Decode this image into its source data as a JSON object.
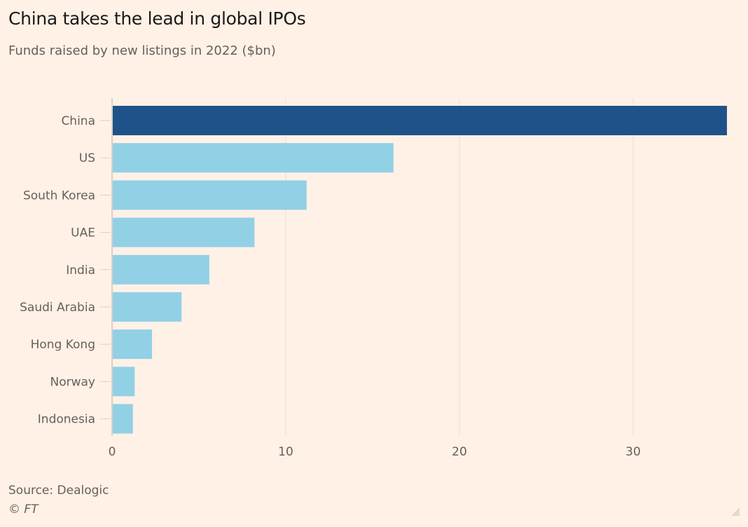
{
  "header": {
    "title": "China takes the lead in global IPOs",
    "subtitle": "Funds raised by new listings in 2022 ($bn)"
  },
  "footer": {
    "source": "Source: Dealogic",
    "copyright": "© FT"
  },
  "colors": {
    "highlight": "#1f5289",
    "bar": "#92d0e6",
    "grid": "#e8dfd7",
    "background": "#fff1e5"
  },
  "chart_data": {
    "type": "bar",
    "orientation": "horizontal",
    "title": "China takes the lead in global IPOs",
    "subtitle": "Funds raised by new listings in 2022 ($bn)",
    "xlabel": "",
    "ylabel": "",
    "categories": [
      "China",
      "US",
      "South Korea",
      "UAE",
      "India",
      "Saudi Arabia",
      "Hong Kong",
      "Norway",
      "Indonesia"
    ],
    "values": [
      35.4,
      16.2,
      11.2,
      8.2,
      5.6,
      4.0,
      2.3,
      1.3,
      1.2
    ],
    "highlighted": [
      "China"
    ],
    "xlim": [
      0,
      35.4
    ],
    "xticks": [
      0,
      10,
      20,
      30
    ],
    "xtick_labels": [
      "0",
      "10",
      "20",
      "30"
    ],
    "grid": true,
    "legend": "none"
  }
}
